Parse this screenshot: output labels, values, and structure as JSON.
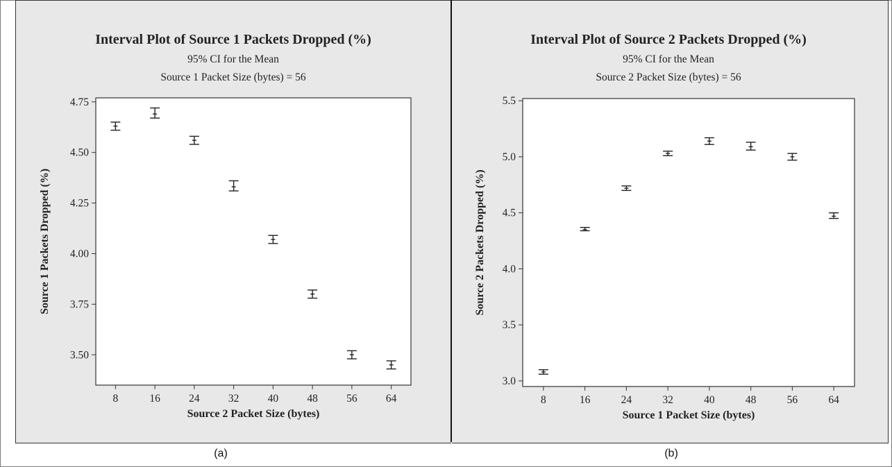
{
  "chart_data": [
    {
      "type": "interval",
      "title": "Interval Plot of Source 1 Packets Dropped (%)",
      "subtitles": [
        "95% CI for the Mean",
        "Source 1 Packet Size (bytes) = 56"
      ],
      "xlabel": "Source 2 Packet Size (bytes)",
      "ylabel": "Source 1 Packets Dropped (%)",
      "categories": [
        "8",
        "16",
        "24",
        "32",
        "40",
        "48",
        "56",
        "64"
      ],
      "means": [
        4.63,
        4.69,
        4.56,
        4.33,
        4.07,
        3.8,
        3.5,
        3.45
      ],
      "lower": [
        4.61,
        4.67,
        4.54,
        4.31,
        4.05,
        3.78,
        3.48,
        3.43
      ],
      "upper": [
        4.65,
        4.72,
        4.58,
        4.36,
        4.09,
        3.82,
        3.52,
        3.47
      ],
      "yticks": [
        "3.50",
        "3.75",
        "4.00",
        "4.25",
        "4.50",
        "4.75"
      ],
      "ylim": [
        3.35,
        4.77
      ],
      "caption": "(a)"
    },
    {
      "type": "interval",
      "title": "Interval Plot of Source 2 Packets Dropped (%)",
      "subtitles": [
        "95% CI for the Mean",
        "Source 2 Packet Size (bytes) = 56"
      ],
      "xlabel": "Source 1 Packet Size (bytes)",
      "ylabel": "Source 2 Packets Dropped (%)",
      "categories": [
        "8",
        "16",
        "24",
        "32",
        "40",
        "48",
        "56",
        "64"
      ],
      "means": [
        3.08,
        4.35,
        4.72,
        5.03,
        5.14,
        5.09,
        5.0,
        4.47
      ],
      "lower": [
        3.06,
        4.34,
        4.7,
        5.01,
        5.11,
        5.06,
        4.97,
        4.45
      ],
      "upper": [
        3.1,
        4.37,
        4.74,
        5.05,
        5.17,
        5.13,
        5.03,
        4.5
      ],
      "yticks": [
        "3.0",
        "3.5",
        "4.0",
        "4.5",
        "5.0",
        "5.5"
      ],
      "ylim": [
        2.95,
        5.52
      ],
      "caption": "(b)"
    }
  ]
}
